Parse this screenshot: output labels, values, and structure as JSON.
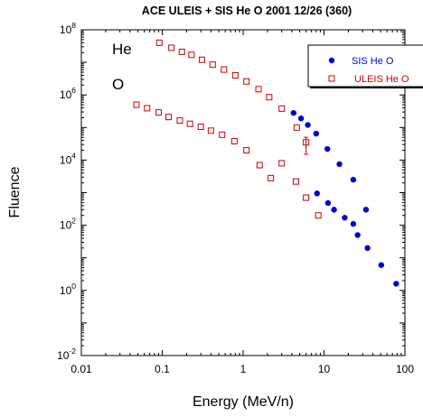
{
  "chart_data": {
    "type": "scatter",
    "title": "ACE ULEIS + SIS He O  2001 12/26 (360)",
    "xlabel": "Energy (MeV/n)",
    "ylabel": "Fluence",
    "x_scale": "log",
    "y_scale": "log",
    "xlim": [
      0.01,
      100
    ],
    "ylim": [
      0.01,
      100000000
    ],
    "x_ticks": [
      {
        "value": 0.01,
        "label": "0.01"
      },
      {
        "value": 0.1,
        "label": "0.1"
      },
      {
        "value": 1,
        "label": "1"
      },
      {
        "value": 10,
        "label": "10"
      },
      {
        "value": 100,
        "label": "100"
      }
    ],
    "y_ticks": [
      {
        "value": 0.01,
        "base": "10",
        "exp": "-2"
      },
      {
        "value": 1,
        "base": "10",
        "exp": "0"
      },
      {
        "value": 100,
        "base": "10",
        "exp": "2"
      },
      {
        "value": 10000,
        "base": "10",
        "exp": "4"
      },
      {
        "value": 1000000,
        "base": "10",
        "exp": "6"
      },
      {
        "value": 100000000,
        "base": "10",
        "exp": "8"
      }
    ],
    "annotations": [
      {
        "text": "He",
        "x": 0.024,
        "y": 18000000
      },
      {
        "text": "O",
        "x": 0.024,
        "y": 1500000
      }
    ],
    "legend": {
      "position": "top-right"
    },
    "series": [
      {
        "name": "SIS He O",
        "color": "#0000cc",
        "marker": "filled-circle",
        "points": [
          [
            4.2,
            280000
          ],
          [
            5.2,
            190000
          ],
          [
            6.3,
            120000
          ],
          [
            8.0,
            65000
          ],
          [
            11.0,
            22000
          ],
          [
            15.5,
            7500
          ],
          [
            23.0,
            2500
          ],
          [
            33.0,
            300
          ],
          [
            8.2,
            950
          ],
          [
            11.2,
            480
          ],
          [
            13.3,
            300
          ],
          [
            18.0,
            170
          ],
          [
            23.0,
            110
          ],
          [
            26.0,
            50
          ],
          [
            34.5,
            20
          ],
          [
            51.0,
            6
          ],
          [
            78.0,
            1.6
          ]
        ]
      },
      {
        "name": "ULEIS He O",
        "color": "#cc0000",
        "marker": "open-square",
        "points": [
          [
            0.092,
            40000000
          ],
          [
            0.13,
            28000000
          ],
          [
            0.175,
            21000000
          ],
          [
            0.23,
            17000000
          ],
          [
            0.31,
            12000000
          ],
          [
            0.42,
            8500000
          ],
          [
            0.58,
            6000000
          ],
          [
            0.8,
            4000000
          ],
          [
            1.1,
            2600000
          ],
          [
            1.55,
            1500000
          ],
          [
            2.1,
            850000
          ],
          [
            3.0,
            380000
          ],
          [
            4.6,
            100000
          ],
          [
            6.0,
            35000
          ],
          [
            0.048,
            500000
          ],
          [
            0.065,
            390000
          ],
          [
            0.09,
            290000
          ],
          [
            0.12,
            210000
          ],
          [
            0.165,
            165000
          ],
          [
            0.22,
            130000
          ],
          [
            0.3,
            105000
          ],
          [
            0.4,
            80000
          ],
          [
            0.55,
            60000
          ],
          [
            0.78,
            38000
          ],
          [
            1.1,
            20000
          ],
          [
            1.6,
            7000
          ],
          [
            2.2,
            2800
          ],
          [
            3.0,
            8000
          ],
          [
            4.5,
            2200
          ],
          [
            6.0,
            700
          ],
          [
            8.5,
            200
          ]
        ],
        "error_bars": [
          {
            "x": 6.0,
            "low": 15000,
            "high": 50000
          }
        ]
      }
    ]
  }
}
